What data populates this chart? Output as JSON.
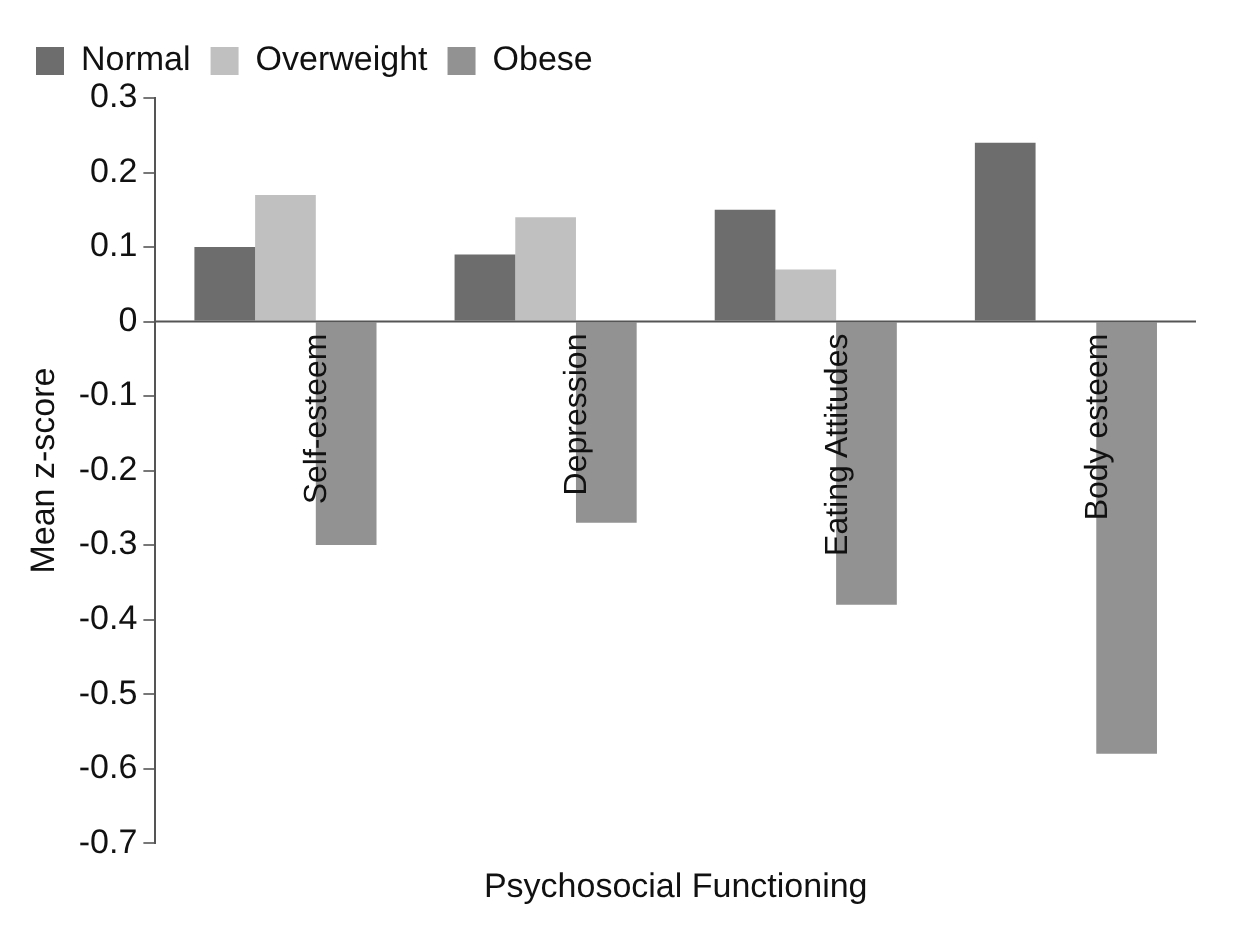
{
  "chart_data": {
    "type": "bar",
    "xlabel": "Psychosocial Functioning",
    "ylabel": "Mean z-score",
    "categories": [
      "Self-esteem",
      "Depression",
      "Eating Attitudes",
      "Body esteem"
    ],
    "series": [
      {
        "name": "Normal",
        "color": "#6d6d6d",
        "values": [
          0.1,
          0.09,
          0.15,
          0.24
        ]
      },
      {
        "name": "Overweight",
        "color": "#c0c0c0",
        "values": [
          0.17,
          0.14,
          0.07,
          0
        ]
      },
      {
        "name": "Obese",
        "color": "#929292",
        "values": [
          -0.3,
          -0.27,
          -0.38,
          -0.58
        ]
      }
    ],
    "ylim": [
      -0.7,
      0.3
    ],
    "yticks": [
      -0.7,
      -0.6,
      -0.5,
      -0.4,
      -0.3,
      -0.2,
      -0.1,
      0,
      0.1,
      0.2,
      0.3
    ],
    "grid": false,
    "legend": "top left"
  }
}
